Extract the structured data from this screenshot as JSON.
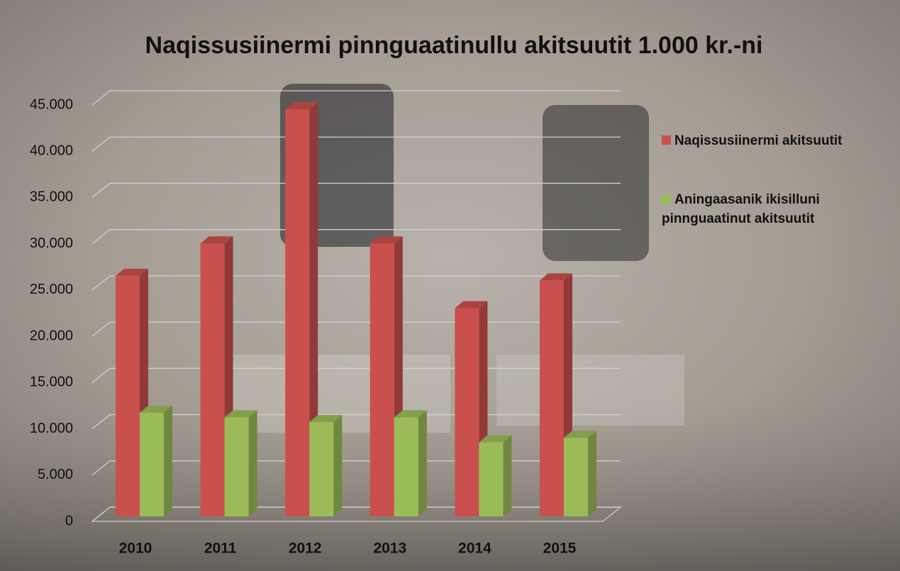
{
  "chart_data": {
    "type": "bar3d",
    "title": "Naqissusiinermi pinnguaatinullu akitsuutit 1.000 kr.-ni",
    "categories": [
      "2010",
      "2011",
      "2012",
      "2013",
      "2014",
      "2015"
    ],
    "series": [
      {
        "name": "Naqissusiinermi akitsuutit",
        "color": "#c9504d",
        "values": [
          26000,
          29500,
          44000,
          29500,
          22500,
          25500
        ]
      },
      {
        "name": "Aningaasanik ikisilluni pinnguaatinut akitsuutit",
        "color": "#9bbb59",
        "values": [
          11200,
          10700,
          10200,
          10700,
          8000,
          8500
        ]
      }
    ],
    "ylim": [
      0,
      45000
    ],
    "yticks": [
      {
        "value": 0,
        "label": "0"
      },
      {
        "value": 5000,
        "label": "5.000"
      },
      {
        "value": 10000,
        "label": "10.000"
      },
      {
        "value": 15000,
        "label": "15.000"
      },
      {
        "value": 20000,
        "label": "20.000"
      },
      {
        "value": 25000,
        "label": "25.000"
      },
      {
        "value": 30000,
        "label": "30.000"
      },
      {
        "value": 35000,
        "label": "35.000"
      },
      {
        "value": 40000,
        "label": "40.000"
      },
      {
        "value": 45000,
        "label": "45.000"
      }
    ],
    "grid": true
  }
}
